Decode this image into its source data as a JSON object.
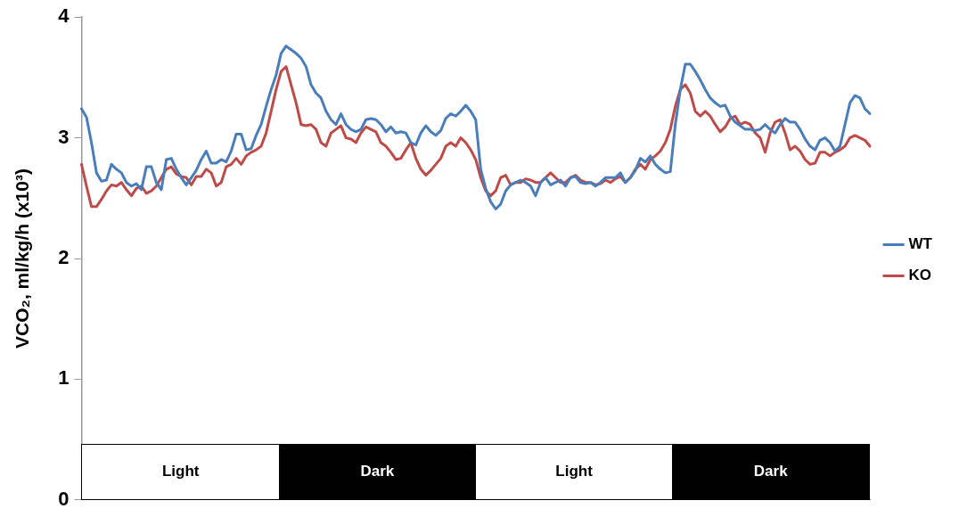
{
  "chart_data": {
    "type": "line",
    "ylabel": "VCO₂, ml/kg/h (x10³)",
    "categories": [
      null,
      null,
      null,
      null,
      null,
      null,
      null,
      null,
      null,
      null,
      null,
      null,
      null,
      null,
      null,
      null,
      null,
      null,
      null,
      null,
      null,
      null,
      null,
      null,
      null,
      null,
      null,
      null,
      null,
      null,
      null,
      null,
      null,
      null,
      null,
      null,
      null,
      null,
      null,
      null,
      null,
      null,
      null,
      null,
      null,
      null,
      null,
      null,
      null,
      null,
      null,
      null,
      null,
      null,
      null,
      null,
      null,
      null,
      null,
      null,
      null,
      null,
      null,
      null,
      null,
      null,
      null,
      null,
      null,
      null,
      null,
      null,
      null,
      null,
      null,
      null,
      null,
      null,
      null,
      null,
      null,
      null,
      null,
      null,
      null,
      null,
      null,
      null,
      null,
      null,
      null,
      null,
      null,
      null,
      null,
      null,
      null,
      null,
      null,
      null,
      null,
      null,
      null,
      null,
      null,
      null,
      null,
      null,
      null,
      null,
      null,
      null,
      null,
      null,
      null,
      null,
      null,
      null,
      null,
      null,
      null,
      null,
      null,
      null,
      null,
      null,
      null,
      null,
      null,
      null,
      null,
      null,
      null,
      null,
      null,
      null,
      null,
      null,
      null,
      null,
      null,
      null,
      null,
      null,
      null,
      null,
      null,
      null,
      null,
      null,
      null,
      null,
      null,
      null,
      null,
      null,
      null,
      null,
      null
    ],
    "ylim": [
      0,
      4
    ],
    "yticks": [
      0,
      1,
      2,
      3,
      4
    ],
    "tick_labels": "y",
    "grid": false,
    "legend": "right",
    "marker": "none",
    "line_style": "solid",
    "annotations": [
      "Light",
      "Dark",
      "Light",
      "Dark"
    ],
    "series": [
      {
        "name": "WT",
        "color": "#4a7ebb",
        "values": [
          3.24,
          3.17,
          2.96,
          2.71,
          2.64,
          2.65,
          2.78,
          2.74,
          2.71,
          2.63,
          2.6,
          2.62,
          2.57,
          2.76,
          2.76,
          2.63,
          2.57,
          2.82,
          2.83,
          2.74,
          2.67,
          2.61,
          2.67,
          2.73,
          2.82,
          2.89,
          2.79,
          2.79,
          2.82,
          2.8,
          2.89,
          3.03,
          3.03,
          2.9,
          2.91,
          3.02,
          3.11,
          3.26,
          3.4,
          3.52,
          3.7,
          3.76,
          3.73,
          3.7,
          3.66,
          3.59,
          3.44,
          3.37,
          3.33,
          3.22,
          3.15,
          3.11,
          3.2,
          3.11,
          3.07,
          3.05,
          3.07,
          3.15,
          3.16,
          3.15,
          3.11,
          3.05,
          3.09,
          3.04,
          3.05,
          3.04,
          2.96,
          2.94,
          3.04,
          3.1,
          3.05,
          3.02,
          3.06,
          3.16,
          3.2,
          3.18,
          3.22,
          3.27,
          3.22,
          3.15,
          2.74,
          2.58,
          2.47,
          2.41,
          2.45,
          2.56,
          2.61,
          2.63,
          2.65,
          2.63,
          2.6,
          2.52,
          2.63,
          2.67,
          2.61,
          2.63,
          2.65,
          2.6,
          2.67,
          2.68,
          2.63,
          2.62,
          2.63,
          2.6,
          2.63,
          2.67,
          2.67,
          2.67,
          2.71,
          2.63,
          2.67,
          2.73,
          2.83,
          2.8,
          2.85,
          2.78,
          2.74,
          2.71,
          2.72,
          3.11,
          3.4,
          3.61,
          3.61,
          3.55,
          3.48,
          3.4,
          3.33,
          3.29,
          3.26,
          3.27,
          3.18,
          3.13,
          3.1,
          3.07,
          3.07,
          3.06,
          3.07,
          3.11,
          3.07,
          3.04,
          3.11,
          3.16,
          3.13,
          3.13,
          3.07,
          2.99,
          2.93,
          2.9,
          2.98,
          3,
          2.96,
          2.89,
          2.93,
          3.11,
          3.29,
          3.35,
          3.33,
          3.24,
          3.2
        ]
      },
      {
        "name": "KO",
        "color": "#be4b48",
        "values": [
          2.78,
          2.6,
          2.43,
          2.43,
          2.49,
          2.56,
          2.61,
          2.6,
          2.63,
          2.57,
          2.52,
          2.58,
          2.6,
          2.54,
          2.56,
          2.6,
          2.67,
          2.74,
          2.76,
          2.7,
          2.68,
          2.67,
          2.61,
          2.68,
          2.68,
          2.74,
          2.71,
          2.6,
          2.63,
          2.76,
          2.78,
          2.83,
          2.78,
          2.85,
          2.88,
          2.9,
          2.93,
          3.04,
          3.22,
          3.4,
          3.55,
          3.59,
          3.44,
          3.29,
          3.11,
          3.1,
          3.11,
          3.07,
          2.96,
          2.93,
          3.04,
          3.07,
          3.1,
          3,
          2.99,
          2.96,
          3.04,
          3.09,
          3.07,
          3.05,
          2.96,
          2.93,
          2.88,
          2.82,
          2.83,
          2.9,
          2.96,
          2.83,
          2.74,
          2.69,
          2.73,
          2.78,
          2.83,
          2.93,
          2.96,
          2.93,
          3,
          2.96,
          2.9,
          2.82,
          2.67,
          2.56,
          2.52,
          2.56,
          2.67,
          2.69,
          2.61,
          2.63,
          2.63,
          2.66,
          2.65,
          2.63,
          2.63,
          2.67,
          2.71,
          2.67,
          2.63,
          2.63,
          2.67,
          2.69,
          2.65,
          2.63,
          2.63,
          2.61,
          2.62,
          2.65,
          2.63,
          2.66,
          2.68,
          2.63,
          2.67,
          2.74,
          2.78,
          2.74,
          2.82,
          2.85,
          2.89,
          2.96,
          3.07,
          3.26,
          3.4,
          3.44,
          3.37,
          3.22,
          3.18,
          3.22,
          3.18,
          3.11,
          3.05,
          3.09,
          3.16,
          3.18,
          3.11,
          3.13,
          3.11,
          3.04,
          3,
          2.88,
          3.04,
          3.13,
          3.15,
          3.04,
          2.9,
          2.93,
          2.89,
          2.82,
          2.78,
          2.79,
          2.88,
          2.88,
          2.85,
          2.88,
          2.9,
          2.93,
          3,
          3.02,
          3,
          2.98,
          2.93
        ]
      }
    ]
  }
}
